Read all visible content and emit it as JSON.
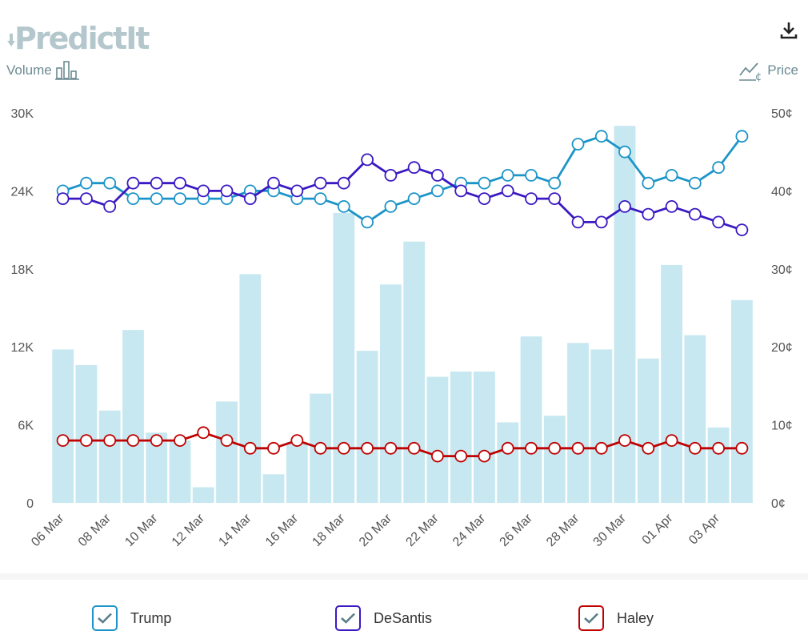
{
  "brand": {
    "logo_text": "PredictIt"
  },
  "toolbar": {
    "volume_label": "Volume",
    "price_label": "Price",
    "download_icon": "download-icon"
  },
  "colors": {
    "trump": "#1c94c8",
    "desantis": "#3b18c2",
    "haley": "#c00000",
    "volume": "#c7e8f0",
    "check": "#5a7d8a"
  },
  "chart_data": {
    "type": "bar+line",
    "x_tick_labels": [
      "06 Mar",
      "08 Mar",
      "10 Mar",
      "12 Mar",
      "14 Mar",
      "16 Mar",
      "18 Mar",
      "20 Mar",
      "22 Mar",
      "24 Mar",
      "26 Mar",
      "28 Mar",
      "30 Mar",
      "01 Apr",
      "03 Apr"
    ],
    "y_left": {
      "label": "Volume",
      "ticks": [
        "0",
        "6K",
        "12K",
        "18K",
        "24K",
        "30K"
      ],
      "ylim": [
        0,
        30000
      ]
    },
    "y_right": {
      "label": "Price",
      "ticks": [
        "0¢",
        "10¢",
        "20¢",
        "30¢",
        "40¢",
        "50¢"
      ],
      "ylim": [
        0,
        50
      ]
    },
    "volume": [
      11800,
      10600,
      7100,
      13300,
      5400,
      4800,
      1200,
      7800,
      17600,
      2200,
      4700,
      8400,
      22300,
      11700,
      16800,
      20100,
      9700,
      10100,
      10100,
      6200,
      12800,
      6700,
      12300,
      11800,
      29000,
      11100,
      18300,
      12900,
      5800,
      15600
    ],
    "series": [
      {
        "name": "Trump",
        "values": [
          40,
          41,
          41,
          39,
          39,
          39,
          39,
          39,
          40,
          40,
          39,
          39,
          38,
          36,
          38,
          39,
          40,
          41,
          41,
          42,
          42,
          41,
          46,
          47,
          45,
          41,
          42,
          41,
          43,
          47
        ]
      },
      {
        "name": "DeSantis",
        "values": [
          39,
          39,
          38,
          41,
          41,
          41,
          40,
          40,
          39,
          41,
          40,
          41,
          41,
          44,
          42,
          43,
          42,
          40,
          39,
          40,
          39,
          39,
          36,
          36,
          38,
          37,
          38,
          37,
          36,
          35
        ]
      },
      {
        "name": "Haley",
        "values": [
          8,
          8,
          8,
          8,
          8,
          8,
          9,
          8,
          7,
          7,
          8,
          7,
          7,
          7,
          7,
          7,
          6,
          6,
          6,
          7,
          7,
          7,
          7,
          7,
          8,
          7,
          8,
          7,
          7,
          7
        ]
      }
    ],
    "grid": false,
    "legend_position": "bottom"
  },
  "legend": [
    {
      "label": "Trump"
    },
    {
      "label": "DeSantis"
    },
    {
      "label": "Haley"
    }
  ]
}
